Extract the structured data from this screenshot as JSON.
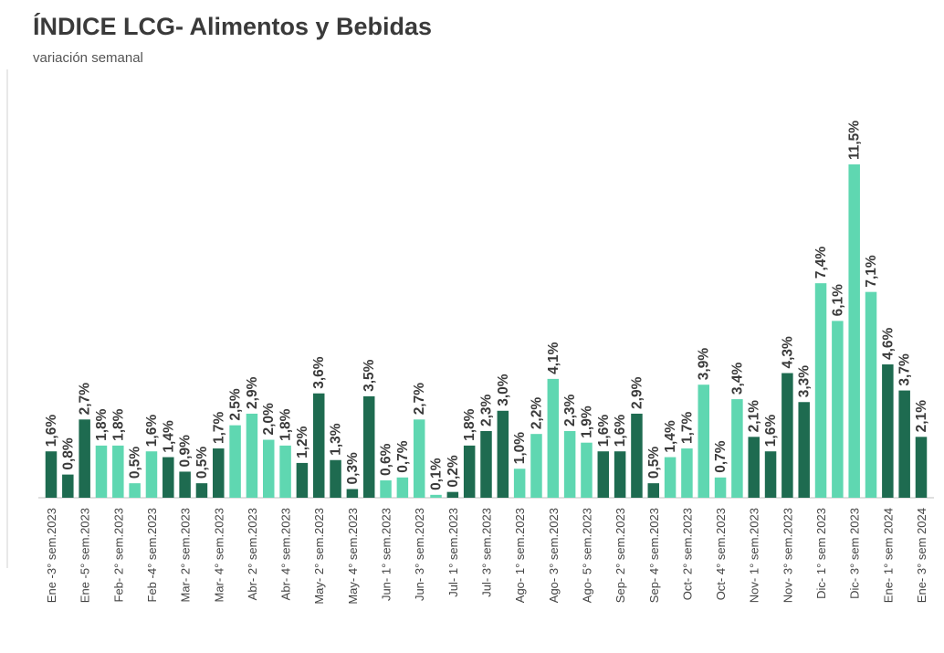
{
  "chart_data": {
    "type": "bar",
    "title": "ÍNDICE LCG- Alimentos y Bebidas",
    "subtitle": "variación semanal",
    "categories": [
      "Ene -3° sem.2023",
      null,
      "Ene -5° sem.2023",
      null,
      "Feb- 2° sem.2023",
      null,
      "Feb -4° sem.2023",
      null,
      "Mar- 2° sem.2023",
      null,
      "Mar- 4° sem.2023",
      null,
      "Abr- 2° sem.2023",
      null,
      "Abr- 4° sem.2023",
      null,
      "May- 2° sem.2023",
      null,
      "May- 4° sem.2023",
      null,
      "Jun- 1° sem.2023",
      null,
      "Jun- 3° sem.2023",
      null,
      "Jul- 1° sem.2023",
      null,
      "Jul- 3° sem.2023",
      null,
      "Ago- 1° sem.2023",
      null,
      "Ago- 3° sem.2023",
      null,
      "Ago- 5° sem.2023",
      null,
      "Sep- 2° sem.2023",
      null,
      "Sep- 4° sem.2023",
      null,
      "Oct- 2° sem.2023",
      null,
      "Oct- 4° sem.2023",
      null,
      "Nov- 1° sem.2023",
      null,
      "Nov- 3° sem.2023",
      null,
      "Dic- 1° sem 2023",
      null,
      "Dic- 3° sem 2023",
      null,
      "Ene- 1° sem 2024",
      null,
      "Ene- 3° sem 2024"
    ],
    "values": [
      1.6,
      0.8,
      2.7,
      1.8,
      1.8,
      0.5,
      1.6,
      1.4,
      0.9,
      0.5,
      1.7,
      2.5,
      2.9,
      2.0,
      1.8,
      1.2,
      3.6,
      1.3,
      0.3,
      3.5,
      0.6,
      0.7,
      2.7,
      0.1,
      0.2,
      1.8,
      2.3,
      3.0,
      1.0,
      2.2,
      4.1,
      2.3,
      1.9,
      1.6,
      1.6,
      2.9,
      0.5,
      1.4,
      1.7,
      3.9,
      0.7,
      3.4,
      2.1,
      1.6,
      4.3,
      3.3,
      7.4,
      6.1,
      11.5,
      7.1,
      4.6,
      3.7,
      2.1
    ],
    "value_labels": [
      "1,6%",
      "0,8%",
      "2,7%",
      "1,8%",
      "1,8%",
      "0,5%",
      "1,6%",
      "1,4%",
      "0,9%",
      "0,5%",
      "1,7%",
      "2,5%",
      "2,9%",
      "2,0%",
      "1,8%",
      "1,2%",
      "3,6%",
      "1,3%",
      "0,3%",
      "3,5%",
      "0,6%",
      "0,7%",
      "2,7%",
      "0,1%",
      "0,2%",
      "1,8%",
      "2,3%",
      "3,0%",
      "1,0%",
      "2,2%",
      "4,1%",
      "2,3%",
      "1,9%",
      "1,6%",
      "1,6%",
      "2,9%",
      "0,5%",
      "1,4%",
      "1,7%",
      "3,9%",
      "0,7%",
      "3,4%",
      "2,1%",
      "1,6%",
      "4,3%",
      "3,3%",
      "7,4%",
      "6,1%",
      "11,5%",
      "7,1%",
      "4,6%",
      "3,7%",
      "2,1%"
    ],
    "colors": [
      "#1e6b50",
      "#1e6b50",
      "#1e6b50",
      "#5fd7b1",
      "#5fd7b1",
      "#5fd7b1",
      "#5fd7b1",
      "#1e6b50",
      "#1e6b50",
      "#1e6b50",
      "#1e6b50",
      "#5fd7b1",
      "#5fd7b1",
      "#5fd7b1",
      "#5fd7b1",
      "#1e6b50",
      "#1e6b50",
      "#1e6b50",
      "#1e6b50",
      "#1e6b50",
      "#5fd7b1",
      "#5fd7b1",
      "#5fd7b1",
      "#5fd7b1",
      "#1e6b50",
      "#1e6b50",
      "#1e6b50",
      "#1e6b50",
      "#5fd7b1",
      "#5fd7b1",
      "#5fd7b1",
      "#5fd7b1",
      "#5fd7b1",
      "#1e6b50",
      "#1e6b50",
      "#1e6b50",
      "#1e6b50",
      "#5fd7b1",
      "#5fd7b1",
      "#5fd7b1",
      "#5fd7b1",
      "#5fd7b1",
      "#1e6b50",
      "#1e6b50",
      "#1e6b50",
      "#1e6b50",
      "#5fd7b1",
      "#5fd7b1",
      "#5fd7b1",
      "#5fd7b1",
      "#1e6b50",
      "#1e6b50",
      "#1e6b50"
    ]
  }
}
